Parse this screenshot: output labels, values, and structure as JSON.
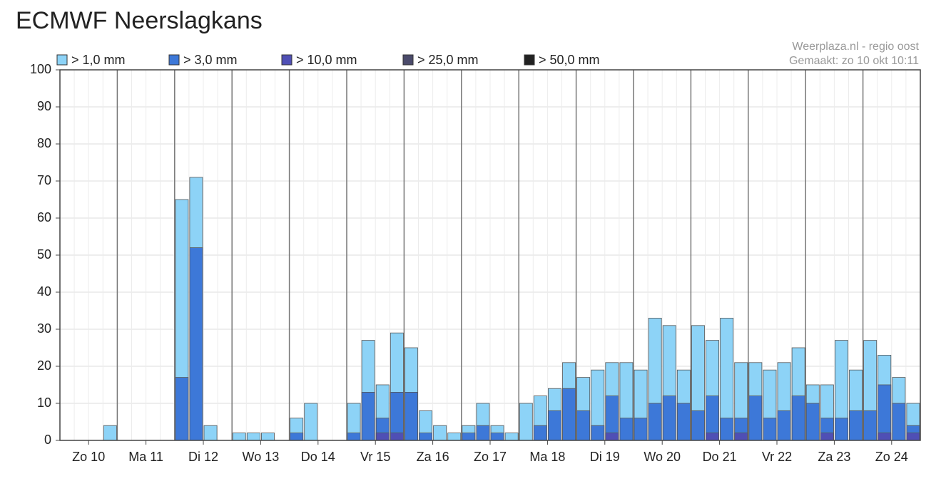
{
  "chart_data": {
    "type": "overlapping_bar",
    "title": "ECMWF Neerslagkans",
    "annotations": [
      "Weerplaza.nl - regio oost",
      "Gemaakt: zo 10 okt 10:11"
    ],
    "groups": [
      "Zo 10",
      "Ma 11",
      "Di 12",
      "Wo 13",
      "Do 14",
      "Vr 15",
      "Za 16",
      "Zo 17",
      "Ma 18",
      "Di 19",
      "Wo 20",
      "Do 21",
      "Vr 22",
      "Za 23",
      "Zo 24"
    ],
    "series": [
      {
        "name": "> 1,0 mm",
        "color": "#8dd3f7",
        "values": [
          0,
          0,
          0,
          4,
          0,
          0,
          0,
          0,
          65,
          71,
          4,
          0,
          2,
          2,
          2,
          0,
          6,
          10,
          0,
          0,
          10,
          27,
          15,
          29,
          25,
          8,
          4,
          2,
          4,
          10,
          4,
          2,
          10,
          12,
          14,
          21,
          17,
          19,
          21,
          21,
          19,
          33,
          31,
          19,
          31,
          27,
          33,
          21,
          21,
          19,
          21,
          25,
          15,
          15,
          27,
          19,
          27,
          23,
          17,
          10
        ]
      },
      {
        "name": "> 3,0 mm",
        "color": "#3d78d8",
        "values": [
          0,
          0,
          0,
          0,
          0,
          0,
          0,
          0,
          17,
          52,
          0,
          0,
          0,
          0,
          0,
          0,
          2,
          0,
          0,
          0,
          2,
          13,
          6,
          13,
          13,
          2,
          0,
          0,
          2,
          4,
          2,
          0,
          0,
          4,
          8,
          14,
          8,
          4,
          12,
          6,
          6,
          10,
          12,
          10,
          8,
          12,
          6,
          6,
          12,
          6,
          8,
          12,
          10,
          6,
          6,
          8,
          8,
          15,
          10,
          4
        ]
      },
      {
        "name": "> 10,0 mm",
        "color": "#4f4fb5",
        "values": [
          0,
          0,
          0,
          0,
          0,
          0,
          0,
          0,
          0,
          0,
          0,
          0,
          0,
          0,
          0,
          0,
          0,
          0,
          0,
          0,
          0,
          0,
          2,
          2,
          0,
          0,
          0,
          0,
          0,
          0,
          0,
          0,
          0,
          0,
          0,
          0,
          0,
          0,
          2,
          0,
          0,
          0,
          0,
          0,
          0,
          2,
          0,
          2,
          0,
          0,
          0,
          0,
          0,
          2,
          0,
          0,
          0,
          2,
          0,
          2
        ]
      },
      {
        "name": "> 25,0 mm",
        "color": "#4b4b6b",
        "values": [
          0,
          0,
          0,
          0,
          0,
          0,
          0,
          0,
          0,
          0,
          0,
          0,
          0,
          0,
          0,
          0,
          0,
          0,
          0,
          0,
          0,
          0,
          0,
          0,
          0,
          0,
          0,
          0,
          0,
          0,
          0,
          0,
          0,
          0,
          0,
          0,
          0,
          0,
          0,
          0,
          0,
          0,
          0,
          0,
          0,
          0,
          0,
          0,
          0,
          0,
          0,
          0,
          0,
          0,
          0,
          0,
          0,
          0,
          0,
          0
        ]
      },
      {
        "name": "> 50,0 mm",
        "color": "#222222",
        "values": [
          0,
          0,
          0,
          0,
          0,
          0,
          0,
          0,
          0,
          0,
          0,
          0,
          0,
          0,
          0,
          0,
          0,
          0,
          0,
          0,
          0,
          0,
          0,
          0,
          0,
          0,
          0,
          0,
          0,
          0,
          0,
          0,
          0,
          0,
          0,
          0,
          0,
          0,
          0,
          0,
          0,
          0,
          0,
          0,
          0,
          0,
          0,
          0,
          0,
          0,
          0,
          0,
          0,
          0,
          0,
          0,
          0,
          0,
          0,
          0
        ]
      }
    ],
    "ylim": [
      0,
      100
    ],
    "yticks": [
      0,
      10,
      20,
      30,
      40,
      50,
      60,
      70,
      80,
      90,
      100
    ],
    "grid": true
  }
}
